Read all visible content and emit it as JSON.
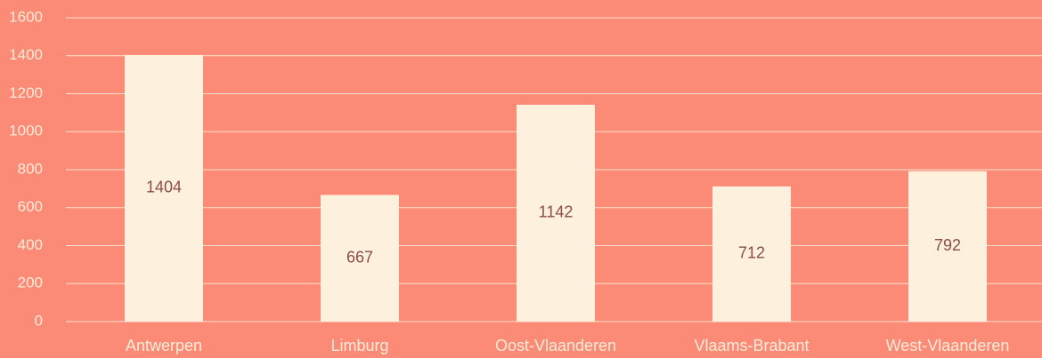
{
  "chart_data": {
    "type": "bar",
    "categories": [
      "Antwerpen",
      "Limburg",
      "Oost-Vlaanderen",
      "Vlaams-Brabant",
      "West-Vlaanderen"
    ],
    "values": [
      1404,
      667,
      1142,
      712,
      792
    ],
    "color": "#fdf0dc",
    "ylim": [
      0,
      1600
    ],
    "yticks": [
      0,
      200,
      400,
      600,
      800,
      1000,
      1200,
      1400,
      1600
    ],
    "grid": true
  }
}
